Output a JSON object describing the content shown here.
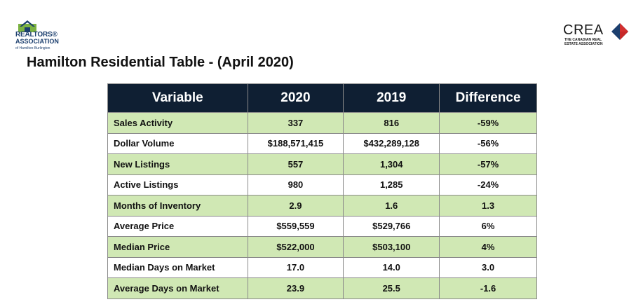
{
  "logos": {
    "left": {
      "line1": "REALTORS®",
      "line2": "ASSOCIATION",
      "line3": "of Hamilton-Burlington"
    },
    "right": {
      "name": "CREA",
      "subtitle": "THE CANADIAN REAL\nESTATE ASSOCIATION"
    }
  },
  "title": "Hamilton Residential Table - (April 2020)",
  "table": {
    "headers": [
      "Variable",
      "2020",
      "2019",
      "Difference"
    ],
    "rows": [
      [
        "Sales Activity",
        "337",
        "816",
        "-59%"
      ],
      [
        "Dollar Volume",
        "$188,571,415",
        "$432,289,128",
        "-56%"
      ],
      [
        "New Listings",
        "557",
        "1,304",
        "-57%"
      ],
      [
        "Active Listings",
        "980",
        "1,285",
        "-24%"
      ],
      [
        "Months of Inventory",
        "2.9",
        "1.6",
        "1.3"
      ],
      [
        "Average Price",
        "$559,559",
        "$529,766",
        "6%"
      ],
      [
        "Median Price",
        "$522,000",
        "$503,100",
        "4%"
      ],
      [
        "Median Days on Market",
        "17.0",
        "14.0",
        "3.0"
      ],
      [
        "Average Days on Market",
        "23.9",
        "25.5",
        "-1.6"
      ]
    ]
  },
  "colors": {
    "header_bg": "#0f1f33",
    "row_green": "#d0e8b4",
    "row_white": "#ffffff",
    "border": "#8a8a8a"
  }
}
